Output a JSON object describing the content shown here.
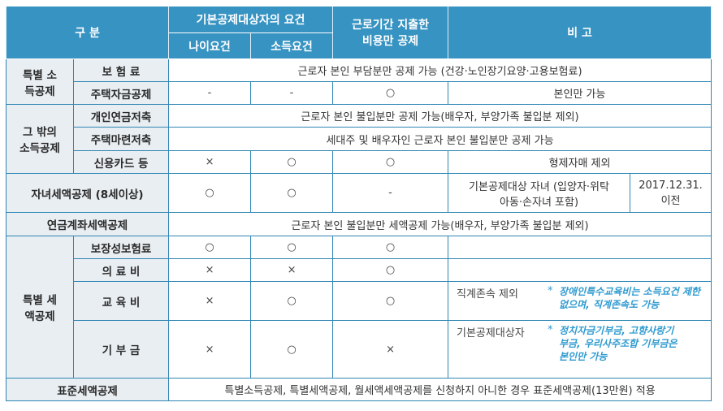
{
  "header": {
    "category": "구 분",
    "basic_requirements": "기본공제대상자의 요건",
    "age_requirement": "나이요건",
    "income_requirement": "소득요건",
    "period_expense": "근로기간 지출한 비용만 공제",
    "remarks": "비 고"
  },
  "groups": {
    "special_income": "특별 소득공제",
    "other_income": "그 밖의 소득공제",
    "special_tax": "특별 세액공제"
  },
  "rows": {
    "insurance": {
      "label": "보 험 료",
      "note": "근로자 본인 부담분만 공제 가능 (건강·노인장기요양·고용보험료)"
    },
    "housing_fund": {
      "label": "주택자금공제",
      "age": "-",
      "income": "-",
      "period": "○",
      "note": "본인만 가능"
    },
    "pension_savings": {
      "label": "개인연금저축",
      "note": "근로자 본인 불입분만 공제 가능(배우자, 부양가족 불입분 제외)"
    },
    "housing_savings": {
      "label": "주택마련저축",
      "note": "세대주 및 배우자인 근로자 본인 불입분만 공제 가능"
    },
    "credit_card": {
      "label": "신용카드 등",
      "age": "×",
      "income": "○",
      "period": "○",
      "note": "형제자매 제외"
    },
    "child_tax": {
      "label": "자녀세액공제 (8세이상)",
      "age": "○",
      "income": "○",
      "period": "-",
      "note": "기본공제대상 자녀 (입양자·위탁아동·손자녀 포함)",
      "note2": "2017.12.31. 이전"
    },
    "pension_account": {
      "label": "연금계좌세액공제",
      "note": "근로자 본인 불입분만 세액공제 가능(배우자, 부양가족 불입분 제외)"
    },
    "protective_insurance": {
      "label": "보장성보험료",
      "age": "○",
      "income": "○",
      "period": "○",
      "note": ""
    },
    "medical": {
      "label": "의 료 비",
      "age": "×",
      "income": "×",
      "period": "○",
      "note": ""
    },
    "education": {
      "label": "교 육 비",
      "age": "×",
      "income": "○",
      "period": "○",
      "note": "직계존속 제외",
      "star": "*",
      "footnote": "장애인특수교육비는 소득요건 제한 없으며, 직계존속도 가능"
    },
    "donation": {
      "label": "기 부 금",
      "age": "×",
      "income": "○",
      "period": "×",
      "note": "기본공제대상자",
      "star": "*",
      "footnote": "정치자금기부금, 고향사랑기부금, 우리사주조합 기부금은 본인만 가능"
    },
    "standard": {
      "label": "표준세액공제",
      "note": "특별소득공제, 특별세액공제, 월세액세액공제를 신청하지 아니한 경우 표준세액공제(13만원) 적용"
    }
  },
  "colors": {
    "header_bg": "#3793c2",
    "label_bg": "#e9eef2",
    "border": "#2f86b3",
    "footnote": "#2e9ad0"
  }
}
